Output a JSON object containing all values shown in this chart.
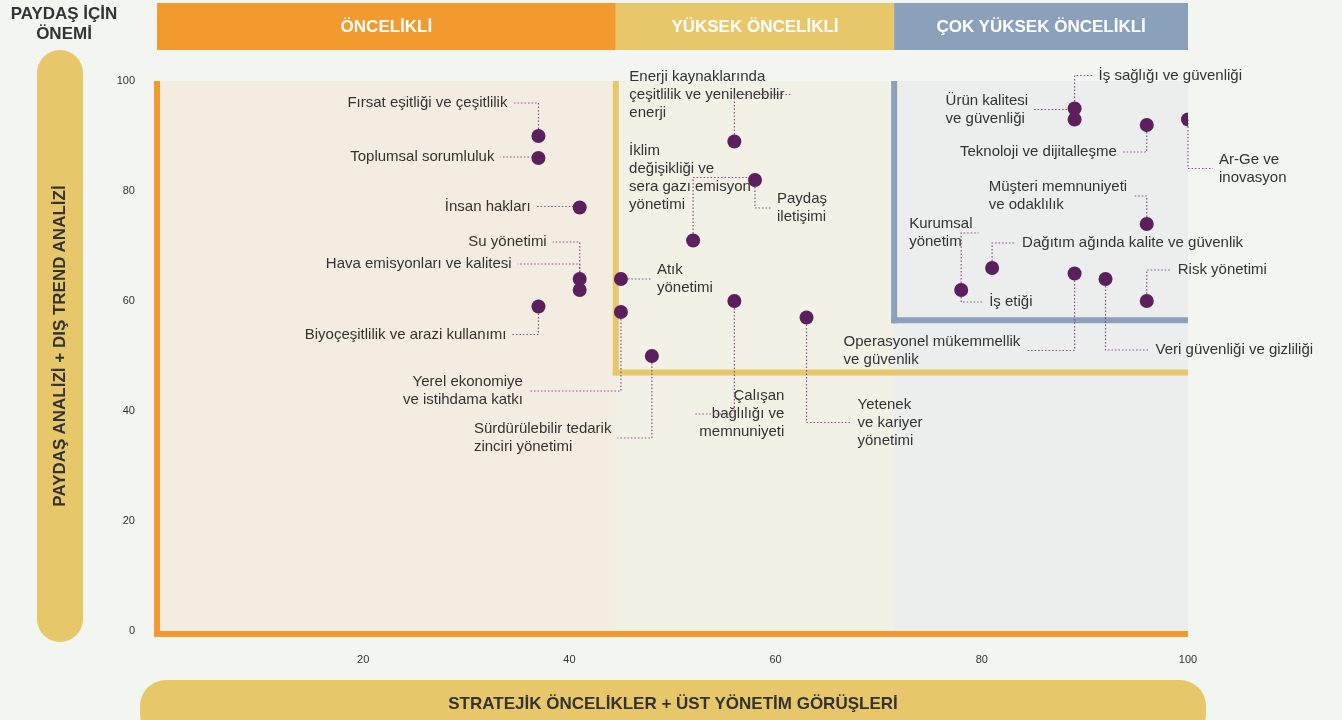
{
  "chart_data": {
    "type": "scatter",
    "title": "PAYDAŞ İÇİN ÖNEMİ",
    "xlabel": "STRATEJİK ÖNCELİKLER + ÜST YÖNETİM GÖRÜŞLERİ",
    "ylabel": "PAYDAŞ ANALİZİ + DIŞ TREND ANALİZİ",
    "xlim": [
      0,
      100
    ],
    "xticks": [
      20,
      40,
      60,
      80,
      100
    ],
    "ylim": [
      0,
      100
    ],
    "yticks": [
      0,
      20,
      40,
      60,
      80,
      100
    ],
    "grid": false,
    "legend": false,
    "marker": "circle",
    "x": [
      37,
      37,
      41,
      41,
      41,
      37,
      45,
      45,
      48,
      56,
      52,
      58,
      56,
      63,
      89,
      89,
      96,
      100,
      96,
      78,
      81,
      89,
      92,
      96
    ],
    "series": [
      {
        "color": "#5c1f5e",
        "values": [
          90,
          86,
          77,
          64,
          62,
          59,
          64,
          58,
          50,
          89,
          71,
          82,
          60,
          57,
          95,
          93,
          92,
          93,
          74,
          62,
          66,
          65,
          64,
          60
        ]
      }
    ],
    "bands": [
      {
        "axis": "x",
        "from": 0,
        "to": 44.5,
        "label": "ÖNCELİKLİ",
        "color": "#f39a2e"
      },
      {
        "axis": "x",
        "from": 44.5,
        "to": 71.5,
        "label": "YÜKSEK ÖNCELİKLİ",
        "color": "#e8c76a"
      },
      {
        "axis": "x",
        "from": 71.5,
        "to": 100,
        "label": "ÇOK YÜKSEK ÖNCELİKLİ",
        "color": "#8aa0bb"
      }
    ],
    "ref_lines": [
      {
        "axis": "y",
        "value": 47,
        "color": "#e8c76a"
      },
      {
        "axis": "y",
        "value": 56.5,
        "color": "#8aa0bb"
      }
    ],
    "annotations": [
      {
        "text": "Fırsat eşitliği ve çeşitlilik",
        "x": 37,
        "y": 90
      },
      {
        "text": "Toplumsal sorumluluk",
        "x": 37,
        "y": 86
      },
      {
        "text": "İnsan hakları",
        "x": 41,
        "y": 77
      },
      {
        "text": "Su yönetimi",
        "x": 41,
        "y": 64
      },
      {
        "text": "Hava emisyonları ve kalitesi",
        "x": 41,
        "y": 62
      },
      {
        "text": "Biyoçeşitlilik ve arazi kullanımı",
        "x": 37,
        "y": 59
      },
      {
        "text": "Atık yönetimi",
        "x": 45,
        "y": 64
      },
      {
        "text": "Yerel ekonomiye ve istihdama katkı",
        "x": 45,
        "y": 58
      },
      {
        "text": "Sürdürülebilir tedarik zinciri yönetimi",
        "x": 48,
        "y": 50
      },
      {
        "text": "Enerji kaynaklarında çeşitlilik ve yenilenebilir enerji",
        "x": 56,
        "y": 89
      },
      {
        "text": "İklim değişikliği ve sera gazı emisyon yönetimi",
        "x": 52,
        "y": 71
      },
      {
        "text": "Paydaş iletişimi",
        "x": 58,
        "y": 82
      },
      {
        "text": "Çalışan bağlılığı ve memnuniyeti",
        "x": 56,
        "y": 60
      },
      {
        "text": "Yetenek ve kariyer yönetimi",
        "x": 63,
        "y": 57
      },
      {
        "text": "İş sağlığı ve güvenliği",
        "x": 89,
        "y": 95
      },
      {
        "text": "Ürün kalitesi ve güvenliği",
        "x": 89,
        "y": 93
      },
      {
        "text": "Teknoloji ve dijitalleşme",
        "x": 96,
        "y": 92
      },
      {
        "text": "Ar-Ge ve inovasyon",
        "x": 100,
        "y": 93
      },
      {
        "text": "Müşteri memnuniyeti ve odaklılık",
        "x": 96,
        "y": 74
      },
      {
        "text": "Kurumsal yönetim",
        "x": 78,
        "y": 62
      },
      {
        "text": "İş etiği",
        "x": 78,
        "y": 62
      },
      {
        "text": "Dağıtım ağında kalite ve güvenlik",
        "x": 81,
        "y": 66
      },
      {
        "text": "Operasyonel mükemmellik ve güvenlik",
        "x": 89,
        "y": 65
      },
      {
        "text": "Veri güvenliği ve gizliliği",
        "x": 92,
        "y": 64
      },
      {
        "text": "Risk yönetimi",
        "x": 96,
        "y": 60
      }
    ]
  }
}
